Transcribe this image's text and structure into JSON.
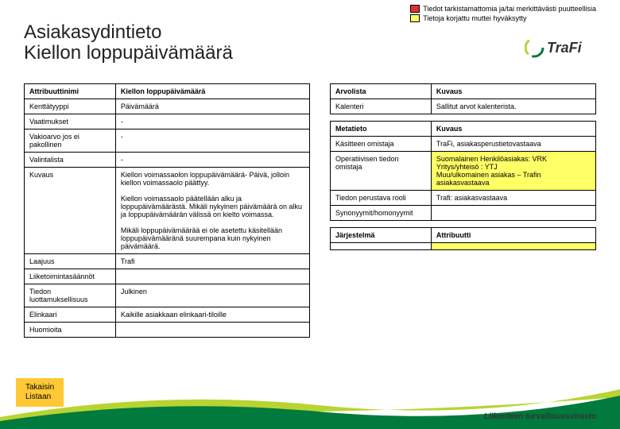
{
  "legend": {
    "row1": {
      "color": "#e03030",
      "text": "Tiedot tarkistamattomia ja/tai merkittävästi puutteellisia"
    },
    "row2": {
      "color": "#ffff66",
      "text": "Tietoja korjattu muttei hyväksytty"
    }
  },
  "title_line1": "Asiakasydintieto",
  "title_line2": "Kiellon loppupäivämäärä",
  "logo_text": "TraFi",
  "left_table": {
    "rows": [
      [
        "Attribuuttinimi",
        "Kiellon loppupäivämäärä"
      ],
      [
        "Kenttätyyppi",
        "Päivämäärä"
      ],
      [
        "Vaatimukset",
        "-"
      ],
      [
        "Vakioarvo jos ei pakollinen",
        "-"
      ],
      [
        "Valintalista",
        "-"
      ],
      [
        "Kuvaus",
        "Kiellon voimassaolon loppupäivämäärä- Päivä, jolloin kiellon voimassaolo päättyy.\n\nKiellon voimassaolo päätellään alku ja loppupäivämäärästä. Mikäli nykyinen päivämäärä on alku ja loppupäivämäärän välissä on kielto voimassa.\n\nMikäli loppupäivämäärää ei ole asetettu käsitellään loppupäivämääränä suurempana kuin nykyinen päivämäärä."
      ],
      [
        "Laajuus",
        "Trafi"
      ],
      [
        "Liiketoimintasäännöt",
        ""
      ],
      [
        "Tiedon luottamuksellisuus",
        "Julkinen"
      ],
      [
        "Elinkaari",
        "Kaikille asiakkaan elinkaari-tiloille"
      ],
      [
        "Huomioita",
        ""
      ]
    ]
  },
  "right_tables": [
    {
      "header": [
        "Arvolista",
        "Kuvaus"
      ],
      "rows": [
        [
          "Kalenteri",
          "Sallitut arvot kalenterista."
        ]
      ]
    },
    {
      "header": [
        "Metatieto",
        "Kuvaus"
      ],
      "rows": [
        [
          "Käsitteen omistaja",
          "TraFi, asiakasperustietovastaava"
        ],
        [
          "Operatiivisen tiedon omistaja",
          "Suomalainen Henkilöasiakas: VRK\nYritys/yhteisö : YTJ\nMuu/ulkomainen asiakas – Trafin asiakasvastaava",
          true
        ],
        [
          "Tiedon perustava rooli",
          "Trafi: asiakasvastaava"
        ],
        [
          "Synonyymit/homonyymit",
          ""
        ]
      ]
    },
    {
      "header": [
        "Järjestelmä",
        "Attribuutti"
      ],
      "rows": [
        [
          "",
          "",
          true
        ]
      ]
    }
  ],
  "back_btn_l1": "Takaisin",
  "back_btn_l2": "Listaan",
  "footer": "Liikenteen turvallisuusvirasto",
  "colors": {
    "highlight": "#ffff66",
    "btn": "#ffc935",
    "curve1": "#b8d432",
    "curve2": "#007a3d"
  }
}
